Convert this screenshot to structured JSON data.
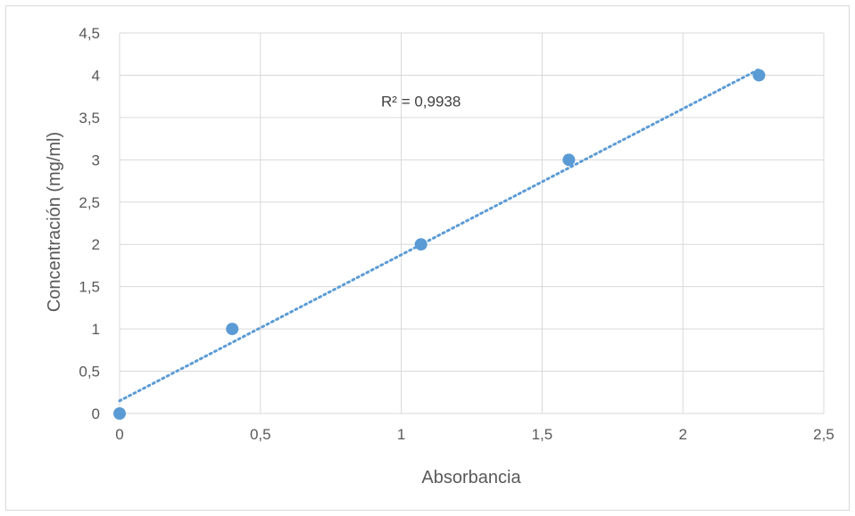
{
  "chart_data": {
    "type": "scatter",
    "title": "",
    "xlabel": "Absorbancia",
    "ylabel": "Concentración (mg/ml)",
    "xlim": [
      0,
      2.5
    ],
    "ylim": [
      0,
      4.5
    ],
    "x_ticks": [
      0,
      0.5,
      1,
      1.5,
      2,
      2.5
    ],
    "y_ticks": [
      0,
      0.5,
      1,
      1.5,
      2,
      2.5,
      3,
      3.5,
      4,
      4.5
    ],
    "x_tick_labels": [
      "0",
      "0,5",
      "1",
      "1,5",
      "2",
      "2,5"
    ],
    "y_tick_labels": [
      "0",
      "0,5",
      "1",
      "1,5",
      "2",
      "2,5",
      "3",
      "3,5",
      "4",
      "4,5"
    ],
    "grid": true,
    "legend": "none",
    "series": [
      {
        "x": [
          0,
          0.4,
          1.07,
          1.595,
          2.27
        ],
        "y": [
          0,
          1,
          2,
          3,
          4
        ],
        "color": "#5b9bd5"
      }
    ],
    "trendline": {
      "type": "linear",
      "from": [
        0,
        0.15
      ],
      "to": [
        2.27,
        4.07
      ],
      "color": "#5b9bd5",
      "style": "dotted"
    },
    "annotations": [
      {
        "text": "R² = 0,9938",
        "x": 1.07,
        "y": 3.63
      }
    ]
  },
  "colors": {
    "series": "#5b9bd5",
    "grid": "#d9d9d9",
    "text": "#595959"
  }
}
